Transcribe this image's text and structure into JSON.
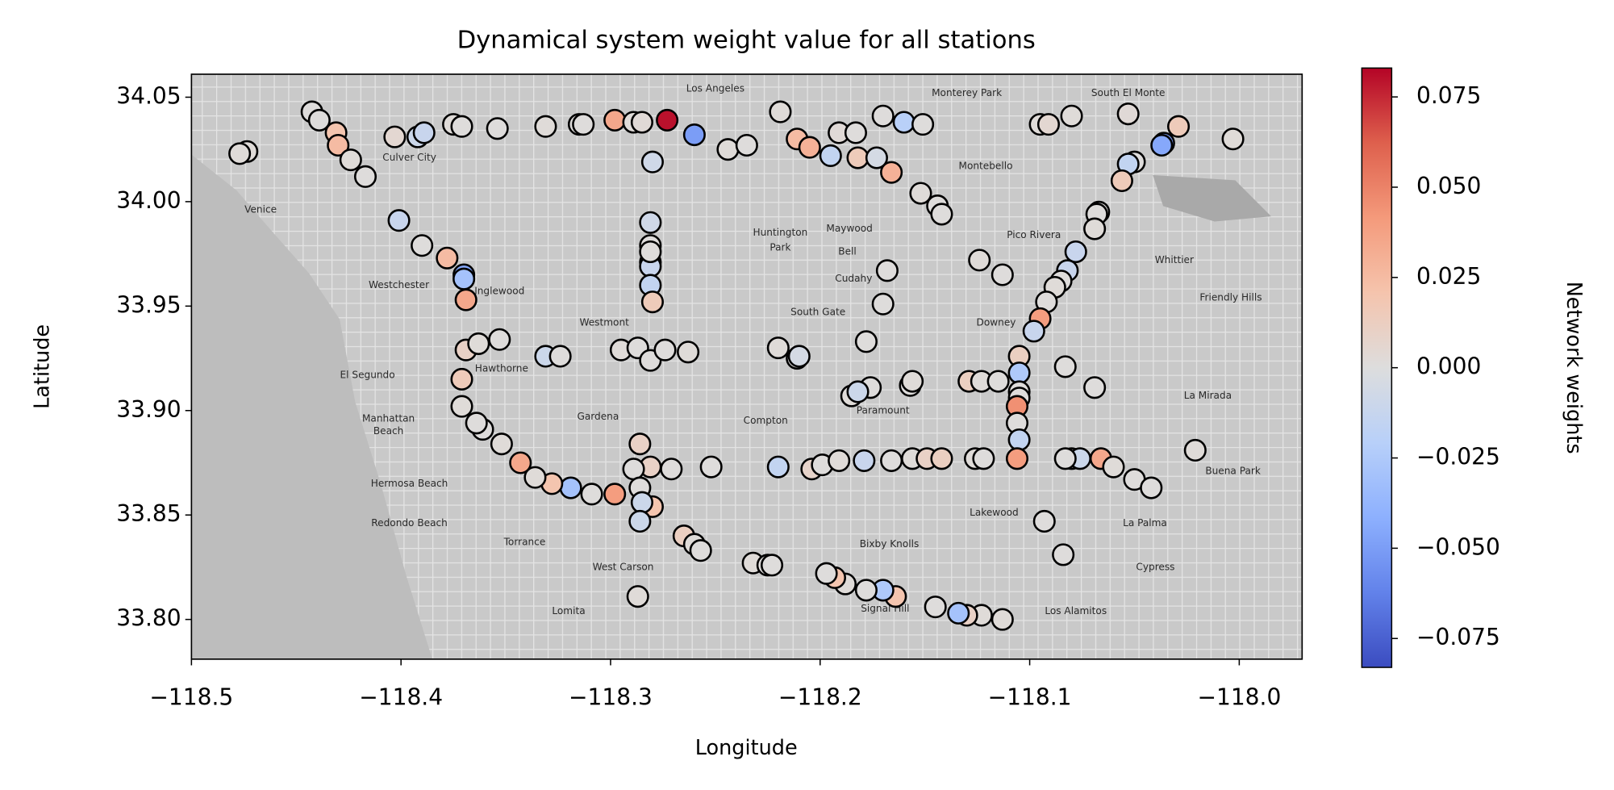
{
  "chart_data": {
    "type": "scatter",
    "title": "Dynamical system weight value for all stations",
    "x_label": "Longitude",
    "y_label": "Latitude",
    "colorbar_label": "Network weights",
    "colormap": "coolwarm",
    "clim": [
      -0.083,
      0.083
    ],
    "xlim": [
      -118.5,
      -117.97
    ],
    "ylim": [
      33.781,
      34.061
    ],
    "xticks": [
      {
        "value": -118.5,
        "label": "−118.5"
      },
      {
        "value": -118.4,
        "label": "−118.4"
      },
      {
        "value": -118.3,
        "label": "−118.3"
      },
      {
        "value": -118.2,
        "label": "−118.2"
      },
      {
        "value": -118.1,
        "label": "−118.1"
      },
      {
        "value": -118.0,
        "label": "−118.0"
      }
    ],
    "yticks": [
      {
        "value": 33.8,
        "label": "33.80"
      },
      33.85,
      {
        "value": 33.9,
        "label": "33.90"
      },
      33.95,
      {
        "value": 34.0,
        "label": "34.00"
      },
      34.05
    ],
    "cticks": [
      {
        "value": -0.075,
        "label": "−0.075"
      },
      {
        "value": -0.05,
        "label": "−0.050"
      },
      {
        "value": -0.025,
        "label": "−0.025"
      },
      {
        "value": 0,
        "label": "0.000"
      },
      0.025,
      {
        "value": 0.05,
        "label": "0.050"
      },
      0.075
    ],
    "x": [
      -118.4735,
      -118.477,
      -118.4425,
      -118.439,
      -118.431,
      -118.43,
      -118.424,
      -118.417,
      -118.403,
      -118.392,
      -118.389,
      -118.375,
      -118.371,
      -118.354,
      -118.331,
      -118.315,
      -118.313,
      -118.298,
      -118.289,
      -118.285,
      -118.273,
      -118.26,
      -118.28,
      -118.244,
      -118.235,
      -118.219,
      -118.211,
      -118.205,
      -118.195,
      -118.191,
      -118.183,
      -118.182,
      -118.173,
      -118.17,
      -118.166,
      -118.16,
      -118.151,
      -118.152,
      -118.144,
      -118.142,
      -118.095,
      -118.091,
      -118.08,
      -118.053,
      -118.05,
      -118.053,
      -118.056,
      -118.036,
      -118.037,
      -118.029,
      -118.003,
      -118.067,
      -118.068,
      -118.069,
      -118.078,
      -118.082,
      -118.085,
      -118.088,
      -118.092,
      -118.095,
      -118.098,
      -118.105,
      -118.105,
      -118.105,
      -118.105,
      -118.106,
      -118.106,
      -118.105,
      -118.106,
      -118.113,
      -118.124,
      -118.129,
      -118.123,
      -118.115,
      -118.083,
      -118.069,
      -118.126,
      -118.122,
      -118.08,
      -118.076,
      -118.066,
      -118.06,
      -118.05,
      -118.042,
      -118.021,
      -118.093,
      -118.084,
      -118.113,
      -118.123,
      -118.13,
      -118.134,
      -118.145,
      -118.164,
      -118.17,
      -118.178,
      -118.188,
      -118.193,
      -118.197,
      -118.157,
      -118.156,
      -118.176,
      -118.185,
      -118.182,
      -118.178,
      -118.17,
      -118.168,
      -118.22,
      -118.211,
      -118.21,
      -118.22,
      -118.204,
      -118.199,
      -118.191,
      -118.179,
      -118.166,
      -118.156,
      -118.149,
      -118.142,
      -118.252,
      -118.271,
      -118.281,
      -118.286,
      -118.289,
      -118.286,
      -118.28,
      -118.285,
      -118.286,
      -118.298,
      -118.309,
      -118.319,
      -118.328,
      -118.336,
      -118.343,
      -118.352,
      -118.361,
      -118.364,
      -118.371,
      -118.371,
      -118.369,
      -118.363,
      -118.353,
      -118.331,
      -118.324,
      -118.295,
      -118.287,
      -118.281,
      -118.274,
      -118.263,
      -118.281,
      -118.281,
      -118.281,
      -118.281,
      -118.281,
      -118.28,
      -118.281,
      -118.37,
      -118.37,
      -118.369,
      -118.378,
      -118.39,
      -118.401,
      -118.265,
      -118.26,
      -118.257,
      -118.232,
      -118.225,
      -118.223,
      -118.287,
      -118.083
    ],
    "y": [
      34.024,
      34.023,
      34.043,
      34.039,
      34.033,
      34.027,
      34.02,
      34.012,
      34.031,
      34.031,
      34.033,
      34.037,
      34.036,
      34.035,
      34.036,
      34.037,
      34.037,
      34.039,
      34.038,
      34.038,
      34.039,
      34.032,
      34.019,
      34.025,
      34.027,
      34.043,
      34.03,
      34.026,
      34.022,
      34.033,
      34.033,
      34.021,
      34.021,
      34.041,
      34.014,
      34.038,
      34.037,
      34.004,
      33.998,
      33.994,
      34.037,
      34.037,
      34.041,
      34.042,
      34.019,
      34.018,
      34.01,
      34.028,
      34.027,
      34.036,
      34.03,
      33.995,
      33.994,
      33.987,
      33.976,
      33.967,
      33.962,
      33.959,
      33.952,
      33.944,
      33.938,
      33.926,
      33.918,
      33.909,
      33.906,
      33.902,
      33.894,
      33.886,
      33.877,
      33.965,
      33.972,
      33.914,
      33.914,
      33.914,
      33.921,
      33.911,
      33.877,
      33.877,
      33.877,
      33.877,
      33.877,
      33.873,
      33.867,
      33.863,
      33.881,
      33.847,
      33.831,
      33.8,
      33.802,
      33.802,
      33.803,
      33.806,
      33.811,
      33.814,
      33.814,
      33.817,
      33.82,
      33.822,
      33.912,
      33.914,
      33.911,
      33.907,
      33.909,
      33.933,
      33.951,
      33.967,
      33.93,
      33.925,
      33.926,
      33.873,
      33.872,
      33.874,
      33.876,
      33.876,
      33.876,
      33.877,
      33.877,
      33.877,
      33.873,
      33.872,
      33.873,
      33.884,
      33.872,
      33.863,
      33.854,
      33.856,
      33.847,
      33.86,
      33.86,
      33.863,
      33.865,
      33.868,
      33.875,
      33.884,
      33.891,
      33.894,
      33.902,
      33.915,
      33.929,
      33.932,
      33.934,
      33.926,
      33.926,
      33.929,
      33.93,
      33.924,
      33.929,
      33.928,
      33.99,
      33.979,
      33.971,
      33.969,
      33.96,
      33.952,
      33.976,
      33.965,
      33.963,
      33.953,
      33.973,
      33.979,
      33.991,
      33.84,
      33.836,
      33.833,
      33.827,
      33.826,
      33.826,
      33.811,
      33.877
    ],
    "values": [
      0.002,
      0.002,
      0.001,
      0.001,
      0.02,
      0.025,
      0.002,
      0.001,
      0.005,
      -0.01,
      -0.012,
      0.002,
      0.001,
      0.001,
      0.002,
      0.001,
      0.001,
      0.035,
      0.002,
      0.003,
      0.08,
      -0.05,
      -0.008,
      0.002,
      0.001,
      0.002,
      0.025,
      0.03,
      -0.015,
      0.003,
      0.001,
      0.015,
      -0.005,
      0.001,
      0.03,
      -0.02,
      0.001,
      0.002,
      0.001,
      0.001,
      0.002,
      0.005,
      0.002,
      0.003,
      0.001,
      -0.015,
      0.015,
      -0.05,
      -0.045,
      0.015,
      0.002,
      0.001,
      0.001,
      0.002,
      -0.012,
      -0.012,
      0.001,
      0.002,
      0.001,
      0.04,
      -0.012,
      0.012,
      -0.025,
      0.001,
      0.001,
      0.045,
      0.001,
      -0.015,
      0.04,
      0.001,
      0.002,
      0.012,
      0.002,
      0.001,
      0.001,
      0.001,
      0.002,
      0.001,
      0.001,
      -0.01,
      0.035,
      0.002,
      0.001,
      0.001,
      0.002,
      0.001,
      0.001,
      0.002,
      0.002,
      0.01,
      -0.03,
      0.001,
      0.02,
      -0.025,
      0.001,
      0.002,
      0.02,
      0.001,
      0.001,
      0.002,
      0.001,
      0.002,
      -0.01,
      0.001,
      0.001,
      0.001,
      0.002,
      0.001,
      -0.005,
      -0.015,
      0.008,
      0.001,
      0.002,
      -0.012,
      0.001,
      0.002,
      0.01,
      0.012,
      0.001,
      0.001,
      0.01,
      0.01,
      0.001,
      0.001,
      0.02,
      -0.01,
      -0.01,
      0.04,
      0.001,
      -0.03,
      0.02,
      0.002,
      0.035,
      0.002,
      0.001,
      0.001,
      0.002,
      0.015,
      0.01,
      0.002,
      0.001,
      -0.01,
      0.001,
      0.002,
      0.001,
      0.001,
      0.001,
      0.002,
      -0.008,
      0.001,
      0.001,
      -0.012,
      -0.015,
      0.015,
      0.001,
      -0.045,
      -0.03,
      0.035,
      0.025,
      0.001,
      -0.012,
      0.012,
      0.002,
      0.001,
      0.002,
      0.001,
      0.001,
      0.002,
      0.001
    ],
    "map_labels": [
      {
        "text": "Los Angeles",
        "x": -118.25,
        "y": 34.054
      },
      {
        "text": "Monterey Park",
        "x": -118.13,
        "y": 34.052
      },
      {
        "text": "South El Monte",
        "x": -118.053,
        "y": 34.052
      },
      {
        "text": "Montebello",
        "x": -118.121,
        "y": 34.017
      },
      {
        "text": "Culver City",
        "x": -118.396,
        "y": 34.021
      },
      {
        "text": "Huntington",
        "x": -118.219,
        "y": 33.985
      },
      {
        "text": "Park",
        "x": -118.219,
        "y": 33.978
      },
      {
        "text": "South Gate",
        "x": -118.201,
        "y": 33.947
      },
      {
        "text": "Downey",
        "x": -118.116,
        "y": 33.942
      },
      {
        "text": "Pico Rivera",
        "x": -118.098,
        "y": 33.984
      },
      {
        "text": "Whittier",
        "x": -118.031,
        "y": 33.972
      },
      {
        "text": "Inglewood",
        "x": -118.353,
        "y": 33.957
      },
      {
        "text": "Hawthorne",
        "x": -118.352,
        "y": 33.92
      },
      {
        "text": "El Segundo",
        "x": -118.416,
        "y": 33.917
      },
      {
        "text": "Gardena",
        "x": -118.306,
        "y": 33.897
      },
      {
        "text": "Compton",
        "x": -118.226,
        "y": 33.895
      },
      {
        "text": "Torrance",
        "x": -118.341,
        "y": 33.837
      },
      {
        "text": "Lakewood",
        "x": -118.117,
        "y": 33.851
      },
      {
        "text": "La Mirada",
        "x": -118.015,
        "y": 33.907
      },
      {
        "text": "Redondo Beach",
        "x": -118.396,
        "y": 33.846
      },
      {
        "text": "Hermosa Beach",
        "x": -118.396,
        "y": 33.865
      },
      {
        "text": "Manhattan",
        "x": -118.406,
        "y": 33.896
      },
      {
        "text": "Beach",
        "x": -118.406,
        "y": 33.89
      },
      {
        "text": "Paramount",
        "x": -118.17,
        "y": 33.9
      },
      {
        "text": "Cypress",
        "x": -118.04,
        "y": 33.825
      },
      {
        "text": "La Palma",
        "x": -118.045,
        "y": 33.846
      },
      {
        "text": "Lomita",
        "x": -118.32,
        "y": 33.804
      },
      {
        "text": "Signal Hill",
        "x": -118.169,
        "y": 33.805
      },
      {
        "text": "Los Alamitos",
        "x": -118.078,
        "y": 33.804
      },
      {
        "text": "Westchester",
        "x": -118.401,
        "y": 33.96
      },
      {
        "text": "Venice",
        "x": -118.467,
        "y": 33.996
      },
      {
        "text": "Buena Park",
        "x": -118.003,
        "y": 33.871
      },
      {
        "text": "Bixby Knolls",
        "x": -118.167,
        "y": 33.836
      },
      {
        "text": "Westmont",
        "x": -118.303,
        "y": 33.942
      },
      {
        "text": "West Carson",
        "x": -118.294,
        "y": 33.825
      },
      {
        "text": "Maywood",
        "x": -118.186,
        "y": 33.987
      },
      {
        "text": "Bell",
        "x": -118.187,
        "y": 33.976
      },
      {
        "text": "Cudahy",
        "x": -118.184,
        "y": 33.963
      },
      {
        "text": "Friendly Hills",
        "x": -118.004,
        "y": 33.954
      }
    ]
  }
}
